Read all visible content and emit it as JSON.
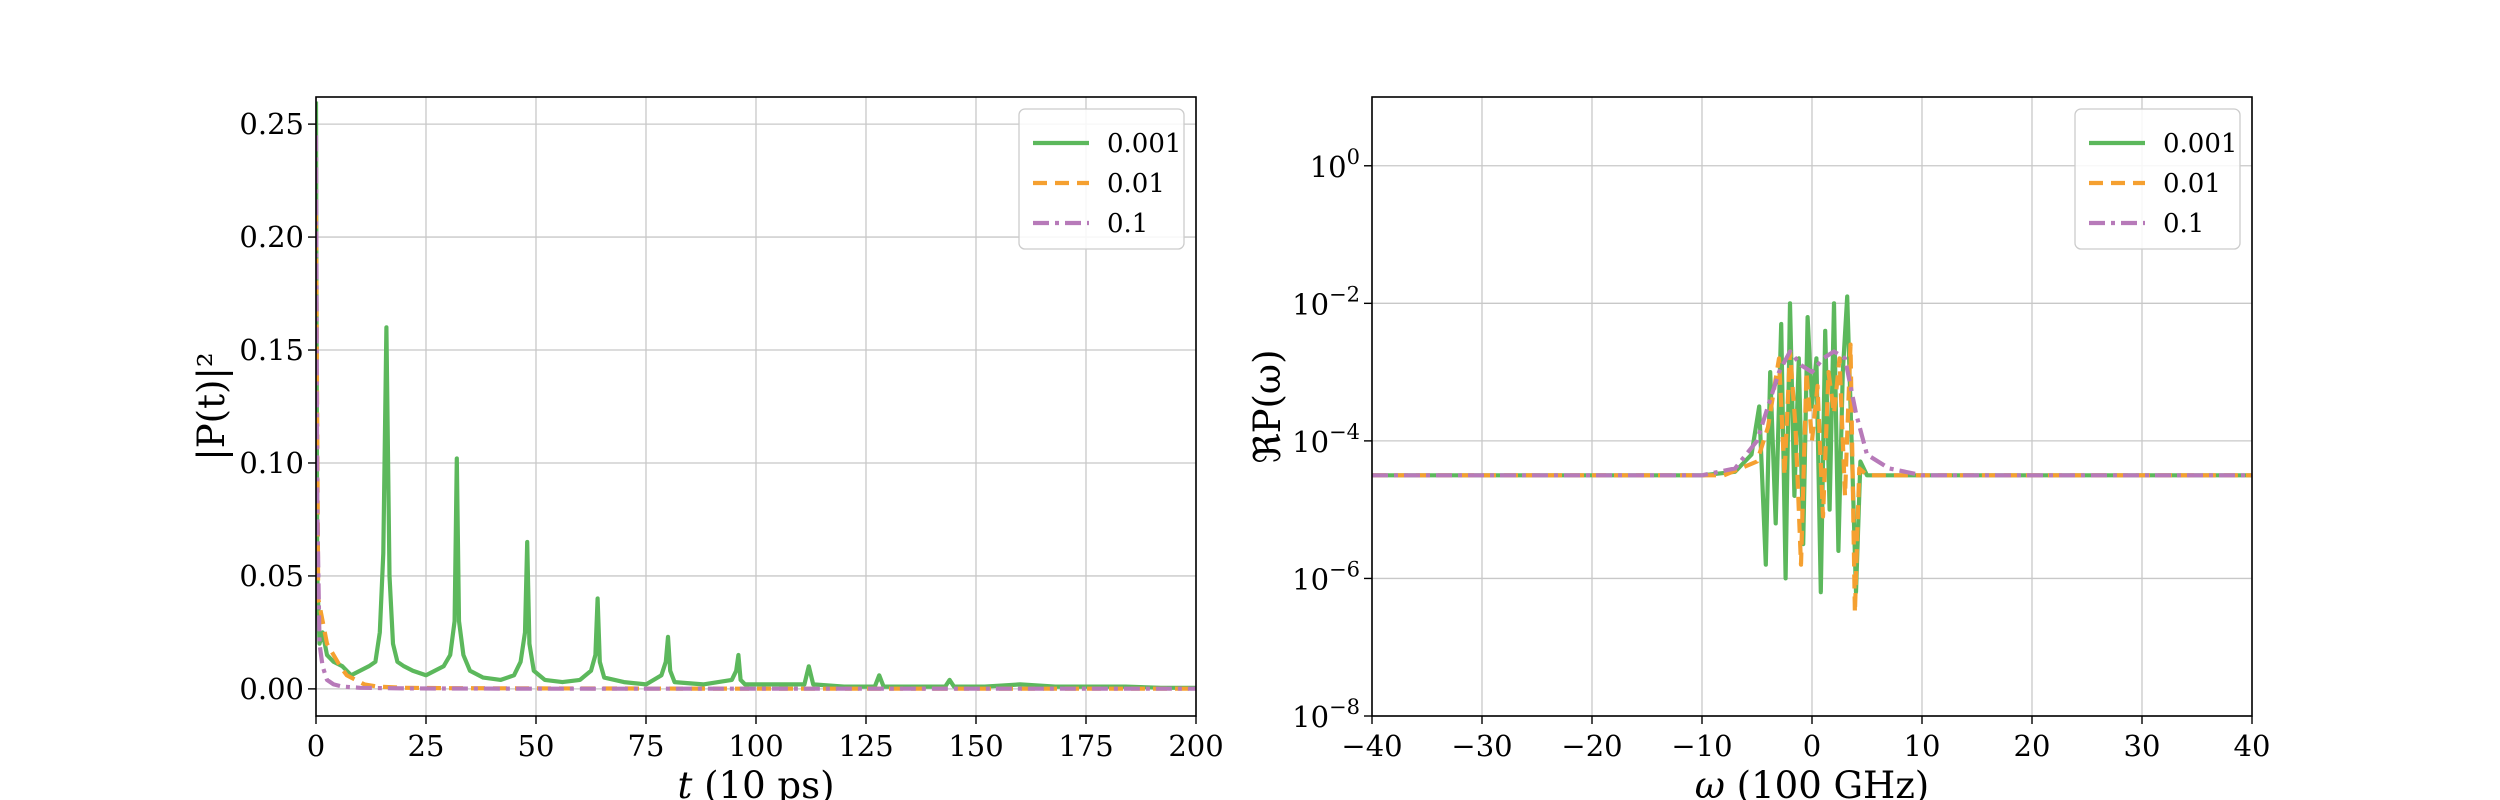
{
  "chart_data": [
    {
      "type": "line",
      "xlabel_var": "t",
      "xlabel_unit": "(10 ps)",
      "ylabel": "|P(t)|²",
      "xlim": [
        0,
        200
      ],
      "ylim": [
        -0.012,
        0.262
      ],
      "xticks": [
        0,
        25,
        50,
        75,
        100,
        125,
        150,
        175,
        200
      ],
      "yticks": [
        0.0,
        0.05,
        0.1,
        0.15,
        0.2,
        0.25
      ],
      "ytick_labels": [
        "0.00",
        "0.05",
        "0.10",
        "0.15",
        "0.20",
        "0.25"
      ],
      "grid": true,
      "legend_position": "top-right",
      "series": [
        {
          "name": "0.001",
          "color": "#5cb85c",
          "dash": "solid",
          "x": [
            0,
            0.3,
            0.8,
            1.5,
            2.5,
            4,
            6,
            8,
            10,
            12,
            13.5,
            14.5,
            15.3,
            16,
            16.7,
            17.5,
            18.5,
            20,
            22,
            25,
            27,
            29,
            30.5,
            31.5,
            32,
            32.5,
            33.5,
            35,
            38,
            42,
            45,
            46.5,
            47.5,
            48,
            48.5,
            49.5,
            52,
            56,
            60,
            62.5,
            63.5,
            64,
            64.5,
            65.5,
            70,
            75,
            78.5,
            79.5,
            80,
            80.5,
            81.5,
            88,
            94.5,
            95.5,
            96,
            96.5,
            97.5,
            104,
            111,
            112,
            113,
            120,
            127,
            128,
            129,
            136,
            143,
            144,
            145,
            152,
            160,
            168,
            176,
            184,
            192,
            200
          ],
          "y": [
            0.26,
            0.05,
            0.02,
            0.025,
            0.015,
            0.012,
            0.01,
            0.006,
            0.008,
            0.01,
            0.012,
            0.025,
            0.06,
            0.16,
            0.05,
            0.02,
            0.012,
            0.01,
            0.008,
            0.006,
            0.008,
            0.01,
            0.015,
            0.03,
            0.102,
            0.03,
            0.015,
            0.008,
            0.005,
            0.004,
            0.006,
            0.012,
            0.025,
            0.065,
            0.02,
            0.008,
            0.004,
            0.003,
            0.004,
            0.008,
            0.015,
            0.04,
            0.012,
            0.005,
            0.003,
            0.002,
            0.006,
            0.012,
            0.023,
            0.008,
            0.003,
            0.002,
            0.004,
            0.008,
            0.015,
            0.004,
            0.002,
            0.002,
            0.002,
            0.01,
            0.002,
            0.001,
            0.001,
            0.006,
            0.001,
            0.001,
            0.001,
            0.004,
            0.001,
            0.001,
            0.002,
            0.001,
            0.001,
            0.001,
            0.0005,
            0.0005
          ]
        },
        {
          "name": "0.01",
          "color": "#f5a030",
          "dash": "dashed",
          "x": [
            0,
            0.5,
            1.5,
            2.5,
            4,
            5.5,
            7,
            9,
            11,
            14,
            20,
            30,
            50,
            100,
            200
          ],
          "y": [
            0.21,
            0.04,
            0.03,
            0.02,
            0.015,
            0.01,
            0.006,
            0.004,
            0.002,
            0.001,
            0.0005,
            0.0003,
            0.0002,
            0.0001,
            0.0001
          ]
        },
        {
          "name": "0.1",
          "color": "#b77ab9",
          "dash": "dashdot",
          "x": [
            0,
            0.3,
            0.8,
            1.5,
            2.5,
            4,
            6,
            10,
            20,
            50,
            100,
            200
          ],
          "y": [
            0.245,
            0.08,
            0.02,
            0.01,
            0.004,
            0.002,
            0.001,
            0.0005,
            0.0002,
            0.0001,
            0.0001,
            0.0001
          ]
        }
      ]
    },
    {
      "type": "line",
      "xlabel_var": "ω",
      "xlabel_unit": "(100 GHz)",
      "ylabel": "ℜP(ω)",
      "scale_y": "log",
      "xlim": [
        -40,
        40
      ],
      "ylim_log10": [
        -8,
        1
      ],
      "xticks": [
        -40,
        -30,
        -20,
        -10,
        0,
        10,
        20,
        30,
        40
      ],
      "xtick_labels": [
        "−40",
        "−30",
        "−20",
        "−10",
        "0",
        "10",
        "20",
        "30",
        "40"
      ],
      "ytick_exponents": [
        -8,
        -6,
        -4,
        -2,
        0
      ],
      "ytick_base": "10",
      "grid": true,
      "legend_position": "top-right",
      "series": [
        {
          "name": "0.001",
          "color": "#5cb85c",
          "dash": "solid",
          "x": [
            -40,
            -10,
            -7,
            -5.5,
            -4.8,
            -4.2,
            -3.8,
            -3.3,
            -2.8,
            -2.4,
            -2.0,
            -1.6,
            -1.2,
            -0.8,
            -0.4,
            0,
            0.4,
            0.8,
            1.2,
            1.6,
            2.0,
            2.4,
            2.8,
            3.2,
            3.6,
            4.0,
            4.4,
            5,
            7,
            10,
            40
          ],
          "y": [
            -4.5,
            -4.5,
            -4.45,
            -4.2,
            -3.5,
            -5.8,
            -3.0,
            -5.2,
            -2.3,
            -6.0,
            -2.0,
            -4.8,
            -2.8,
            -5.5,
            -2.2,
            -3.5,
            -2.8,
            -6.2,
            -2.4,
            -5.0,
            -2.0,
            -5.6,
            -3.0,
            -1.9,
            -4.0,
            -6.2,
            -4.3,
            -4.5,
            -4.5,
            -4.5,
            -4.5
          ]
        },
        {
          "name": "0.01",
          "color": "#f5a030",
          "dash": "dashed",
          "x": [
            -40,
            -8,
            -5,
            -4,
            -3.5,
            -3,
            -2.5,
            -2,
            -1.5,
            -1,
            -0.5,
            0,
            0.5,
            1,
            1.5,
            2,
            2.5,
            3,
            3.5,
            3.9,
            4.3,
            5,
            8,
            40
          ],
          "y": [
            -4.5,
            -4.5,
            -4.3,
            -3.8,
            -3.3,
            -2.8,
            -4.5,
            -2.7,
            -3.8,
            -5.8,
            -3.0,
            -4.0,
            -3.2,
            -5.1,
            -3.0,
            -3.6,
            -2.8,
            -4.8,
            -2.6,
            -6.5,
            -4.4,
            -4.5,
            -4.5,
            -4.5
          ]
        },
        {
          "name": "0.1",
          "color": "#b77ab9",
          "dash": "dashdot",
          "x": [
            -40,
            -10,
            -7,
            -5,
            -4,
            -3,
            -2,
            -1,
            0,
            1,
            2,
            3,
            4,
            5,
            7,
            10,
            40
          ],
          "y": [
            -4.5,
            -4.5,
            -4.4,
            -4.0,
            -3.5,
            -3.0,
            -2.7,
            -2.9,
            -3.0,
            -2.8,
            -2.7,
            -2.8,
            -3.6,
            -4.2,
            -4.4,
            -4.5,
            -4.5
          ]
        }
      ]
    }
  ]
}
